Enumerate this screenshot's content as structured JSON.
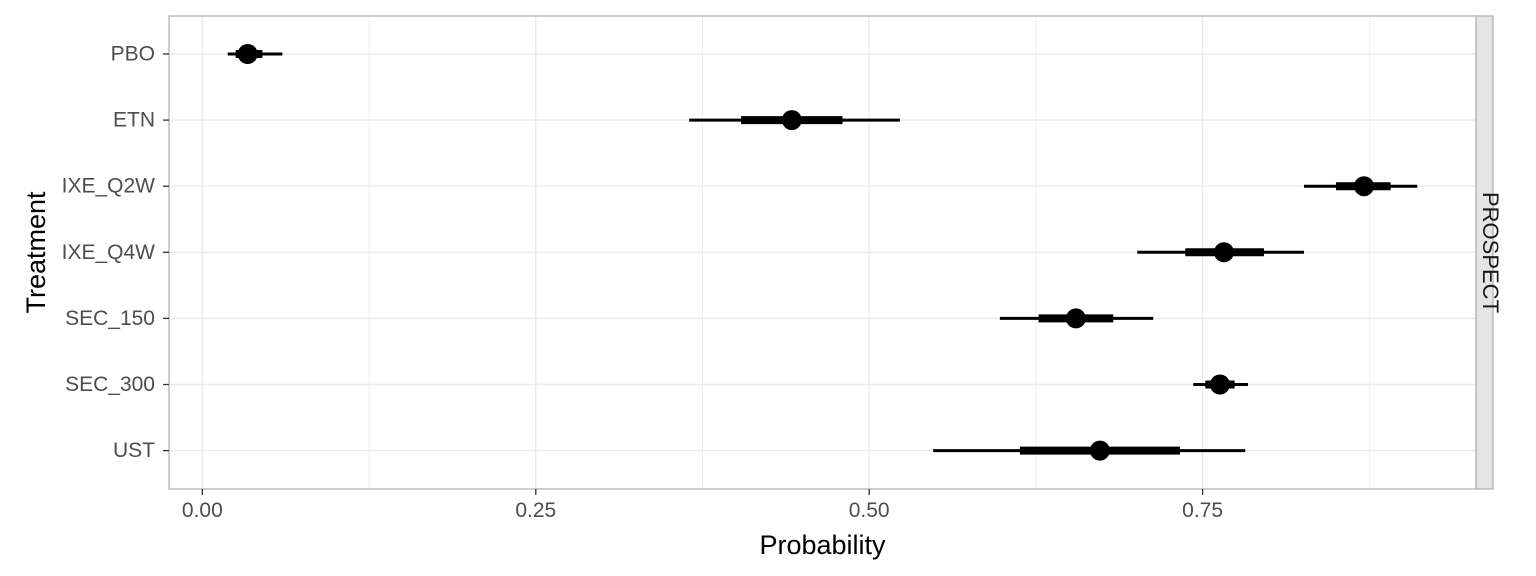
{
  "chart_data": {
    "type": "pointrange",
    "xlabel": "Probability",
    "ylabel": "Treatment",
    "xlim": [
      -0.025,
      0.955
    ],
    "x_ticks": [
      0.0,
      0.25,
      0.5,
      0.75
    ],
    "x_tick_labels": [
      "0.00",
      "0.25",
      "0.50",
      "0.75"
    ],
    "facet_label": "PROSPECT",
    "grid": true,
    "colors": {
      "mark": "#000000",
      "grid": "#ebebeb",
      "panel_border": "#b3b3b3",
      "strip_fill": "#e5e5e5"
    },
    "categories": [
      "PBO",
      "ETN",
      "IXE_Q2W",
      "IXE_Q4W",
      "SEC_150",
      "SEC_300",
      "UST"
    ],
    "points": [
      {
        "label": "PBO",
        "median": 0.034,
        "inner": [
          0.025,
          0.045
        ],
        "outer": [
          0.019,
          0.06
        ]
      },
      {
        "label": "ETN",
        "median": 0.442,
        "inner": [
          0.404,
          0.48
        ],
        "outer": [
          0.365,
          0.523
        ]
      },
      {
        "label": "IXE_Q2W",
        "median": 0.871,
        "inner": [
          0.85,
          0.891
        ],
        "outer": [
          0.826,
          0.911
        ]
      },
      {
        "label": "IXE_Q4W",
        "median": 0.766,
        "inner": [
          0.737,
          0.796
        ],
        "outer": [
          0.701,
          0.826
        ]
      },
      {
        "label": "SEC_150",
        "median": 0.655,
        "inner": [
          0.627,
          0.683
        ],
        "outer": [
          0.598,
          0.713
        ]
      },
      {
        "label": "SEC_300",
        "median": 0.763,
        "inner": [
          0.752,
          0.774
        ],
        "outer": [
          0.743,
          0.784
        ]
      },
      {
        "label": "UST",
        "median": 0.673,
        "inner": [
          0.613,
          0.733
        ],
        "outer": [
          0.548,
          0.782
        ]
      }
    ]
  }
}
